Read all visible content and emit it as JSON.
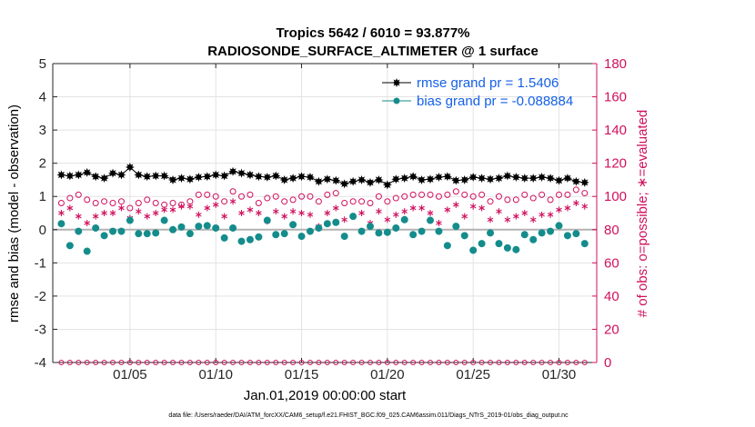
{
  "chart_data": {
    "type": "scatter",
    "title": "Tropics 5642 / 6010 = 93.877%",
    "subtitle": "RADIOSONDE_SURFACE_ALTIMETER @ 1 surface",
    "xlabel": "Jan.01,2019 00:00:00 start",
    "ylabel": "rmse and bias (model - observation)",
    "ylabel_right": "# of obs: o=possible; ∗=evaluated",
    "footer": "data file: /Users/raeder/DAI/ATM_forcXX/CAM6_setup/f.e21.FHIST_BGC.f09_025.CAM6assim.011/Diags_NTrS_2019-01/obs_diag_output.nc",
    "xlim": [
      0.5,
      32.2
    ],
    "ylim": [
      -4,
      5
    ],
    "ylim_right": [
      0,
      180
    ],
    "x_ticks": [
      5,
      10,
      15,
      20,
      25,
      30
    ],
    "x_tick_labels": [
      "01/05",
      "01/10",
      "01/15",
      "01/20",
      "01/25",
      "01/30"
    ],
    "y_ticks": [
      -4,
      -3,
      -2,
      -1,
      0,
      1,
      2,
      3,
      4,
      5
    ],
    "y_ticks_right": [
      0,
      20,
      40,
      60,
      80,
      100,
      120,
      140,
      160,
      180
    ],
    "grid": true,
    "legend_position": "top-right",
    "colors": {
      "rmse": "#000000",
      "bias": "#158c8c",
      "counts": "#d0105e",
      "legend_text": "#1460e6",
      "zero_line": "#b3b3b3"
    },
    "x": [
      1.0,
      1.5,
      2.0,
      2.5,
      3.0,
      3.5,
      4.0,
      4.5,
      5.0,
      5.5,
      6.0,
      6.5,
      7.0,
      7.5,
      8.0,
      8.5,
      9.0,
      9.5,
      10.0,
      10.5,
      11.0,
      11.5,
      12.0,
      12.5,
      13.0,
      13.5,
      14.0,
      14.5,
      15.0,
      15.5,
      16.0,
      16.5,
      17.0,
      17.5,
      18.0,
      18.5,
      19.0,
      19.5,
      20.0,
      20.5,
      21.0,
      21.5,
      22.0,
      22.5,
      23.0,
      23.5,
      24.0,
      24.5,
      25.0,
      25.5,
      26.0,
      26.5,
      27.0,
      27.5,
      28.0,
      28.5,
      29.0,
      29.5,
      30.0,
      30.5,
      31.0,
      31.5
    ],
    "series": [
      {
        "name": "rmse grand pr = 1.5406",
        "marker": "filled-star",
        "axis": "left",
        "values": [
          1.65,
          1.62,
          1.65,
          1.72,
          1.6,
          1.55,
          1.7,
          1.65,
          1.88,
          1.65,
          1.6,
          1.62,
          1.62,
          1.5,
          1.55,
          1.52,
          1.58,
          1.6,
          1.65,
          1.62,
          1.75,
          1.7,
          1.65,
          1.6,
          1.58,
          1.62,
          1.5,
          1.55,
          1.6,
          1.58,
          1.45,
          1.52,
          1.48,
          1.38,
          1.45,
          1.5,
          1.42,
          1.5,
          1.35,
          1.52,
          1.55,
          1.6,
          1.5,
          1.52,
          1.58,
          1.6,
          1.48,
          1.5,
          1.58,
          1.55,
          1.52,
          1.55,
          1.62,
          1.58,
          1.55,
          1.55,
          1.58,
          1.55,
          1.48,
          1.55,
          1.45,
          1.42
        ]
      },
      {
        "name": "bias grand pr = -0.088884",
        "marker": "filled-circle",
        "axis": "left",
        "values": [
          0.18,
          -0.48,
          -0.05,
          -0.65,
          0.05,
          -0.18,
          -0.05,
          -0.05,
          0.28,
          -0.12,
          -0.12,
          -0.1,
          0.28,
          0.0,
          0.08,
          -0.12,
          0.1,
          0.12,
          0.05,
          -0.25,
          0.05,
          -0.35,
          -0.3,
          -0.22,
          0.28,
          -0.15,
          -0.12,
          0.15,
          -0.2,
          -0.05,
          0.05,
          0.18,
          0.22,
          -0.2,
          0.4,
          -0.05,
          0.1,
          -0.1,
          -0.08,
          0.05,
          0.3,
          -0.15,
          -0.05,
          0.28,
          -0.05,
          -0.48,
          0.1,
          -0.18,
          -0.62,
          -0.42,
          -0.1,
          -0.42,
          -0.55,
          -0.6,
          -0.15,
          -0.3,
          -0.1,
          -0.05,
          0.12,
          -0.18,
          -0.12,
          -0.42
        ]
      },
      {
        "name": "# of obs possible",
        "marker": "open-circle",
        "axis": "right",
        "values": [
          96,
          99,
          101,
          98,
          96,
          97,
          96,
          97,
          93,
          96,
          98,
          96,
          95,
          96,
          95,
          97,
          101,
          101,
          100,
          97,
          103,
          100,
          101,
          96,
          99,
          100,
          97,
          98,
          100,
          100,
          97,
          101,
          102,
          96,
          97,
          97,
          96,
          100,
          97,
          99,
          100,
          101,
          101,
          101,
          100,
          101,
          103,
          101,
          100,
          101,
          97,
          100,
          98,
          98,
          101,
          99,
          101,
          98,
          101,
          101,
          104,
          102
        ]
      },
      {
        "name": "# of obs evaluated",
        "marker": "asterisk",
        "axis": "right",
        "values": [
          90,
          93,
          88,
          84,
          88,
          90,
          90,
          93,
          87,
          91,
          88,
          90,
          92,
          92,
          94,
          94,
          89,
          93,
          95,
          88,
          97,
          90,
          92,
          90,
          85,
          91,
          88,
          91,
          90,
          89,
          82,
          90,
          93,
          86,
          88,
          90,
          84,
          91,
          86,
          89,
          91,
          93,
          93,
          90,
          84,
          92,
          95,
          88,
          94,
          93,
          86,
          91,
          86,
          88,
          90,
          86,
          89,
          89,
          92,
          93,
          96,
          94
        ]
      }
    ],
    "zero_count_series": {
      "marker": "open-circle",
      "axis": "right",
      "value": 0
    }
  }
}
